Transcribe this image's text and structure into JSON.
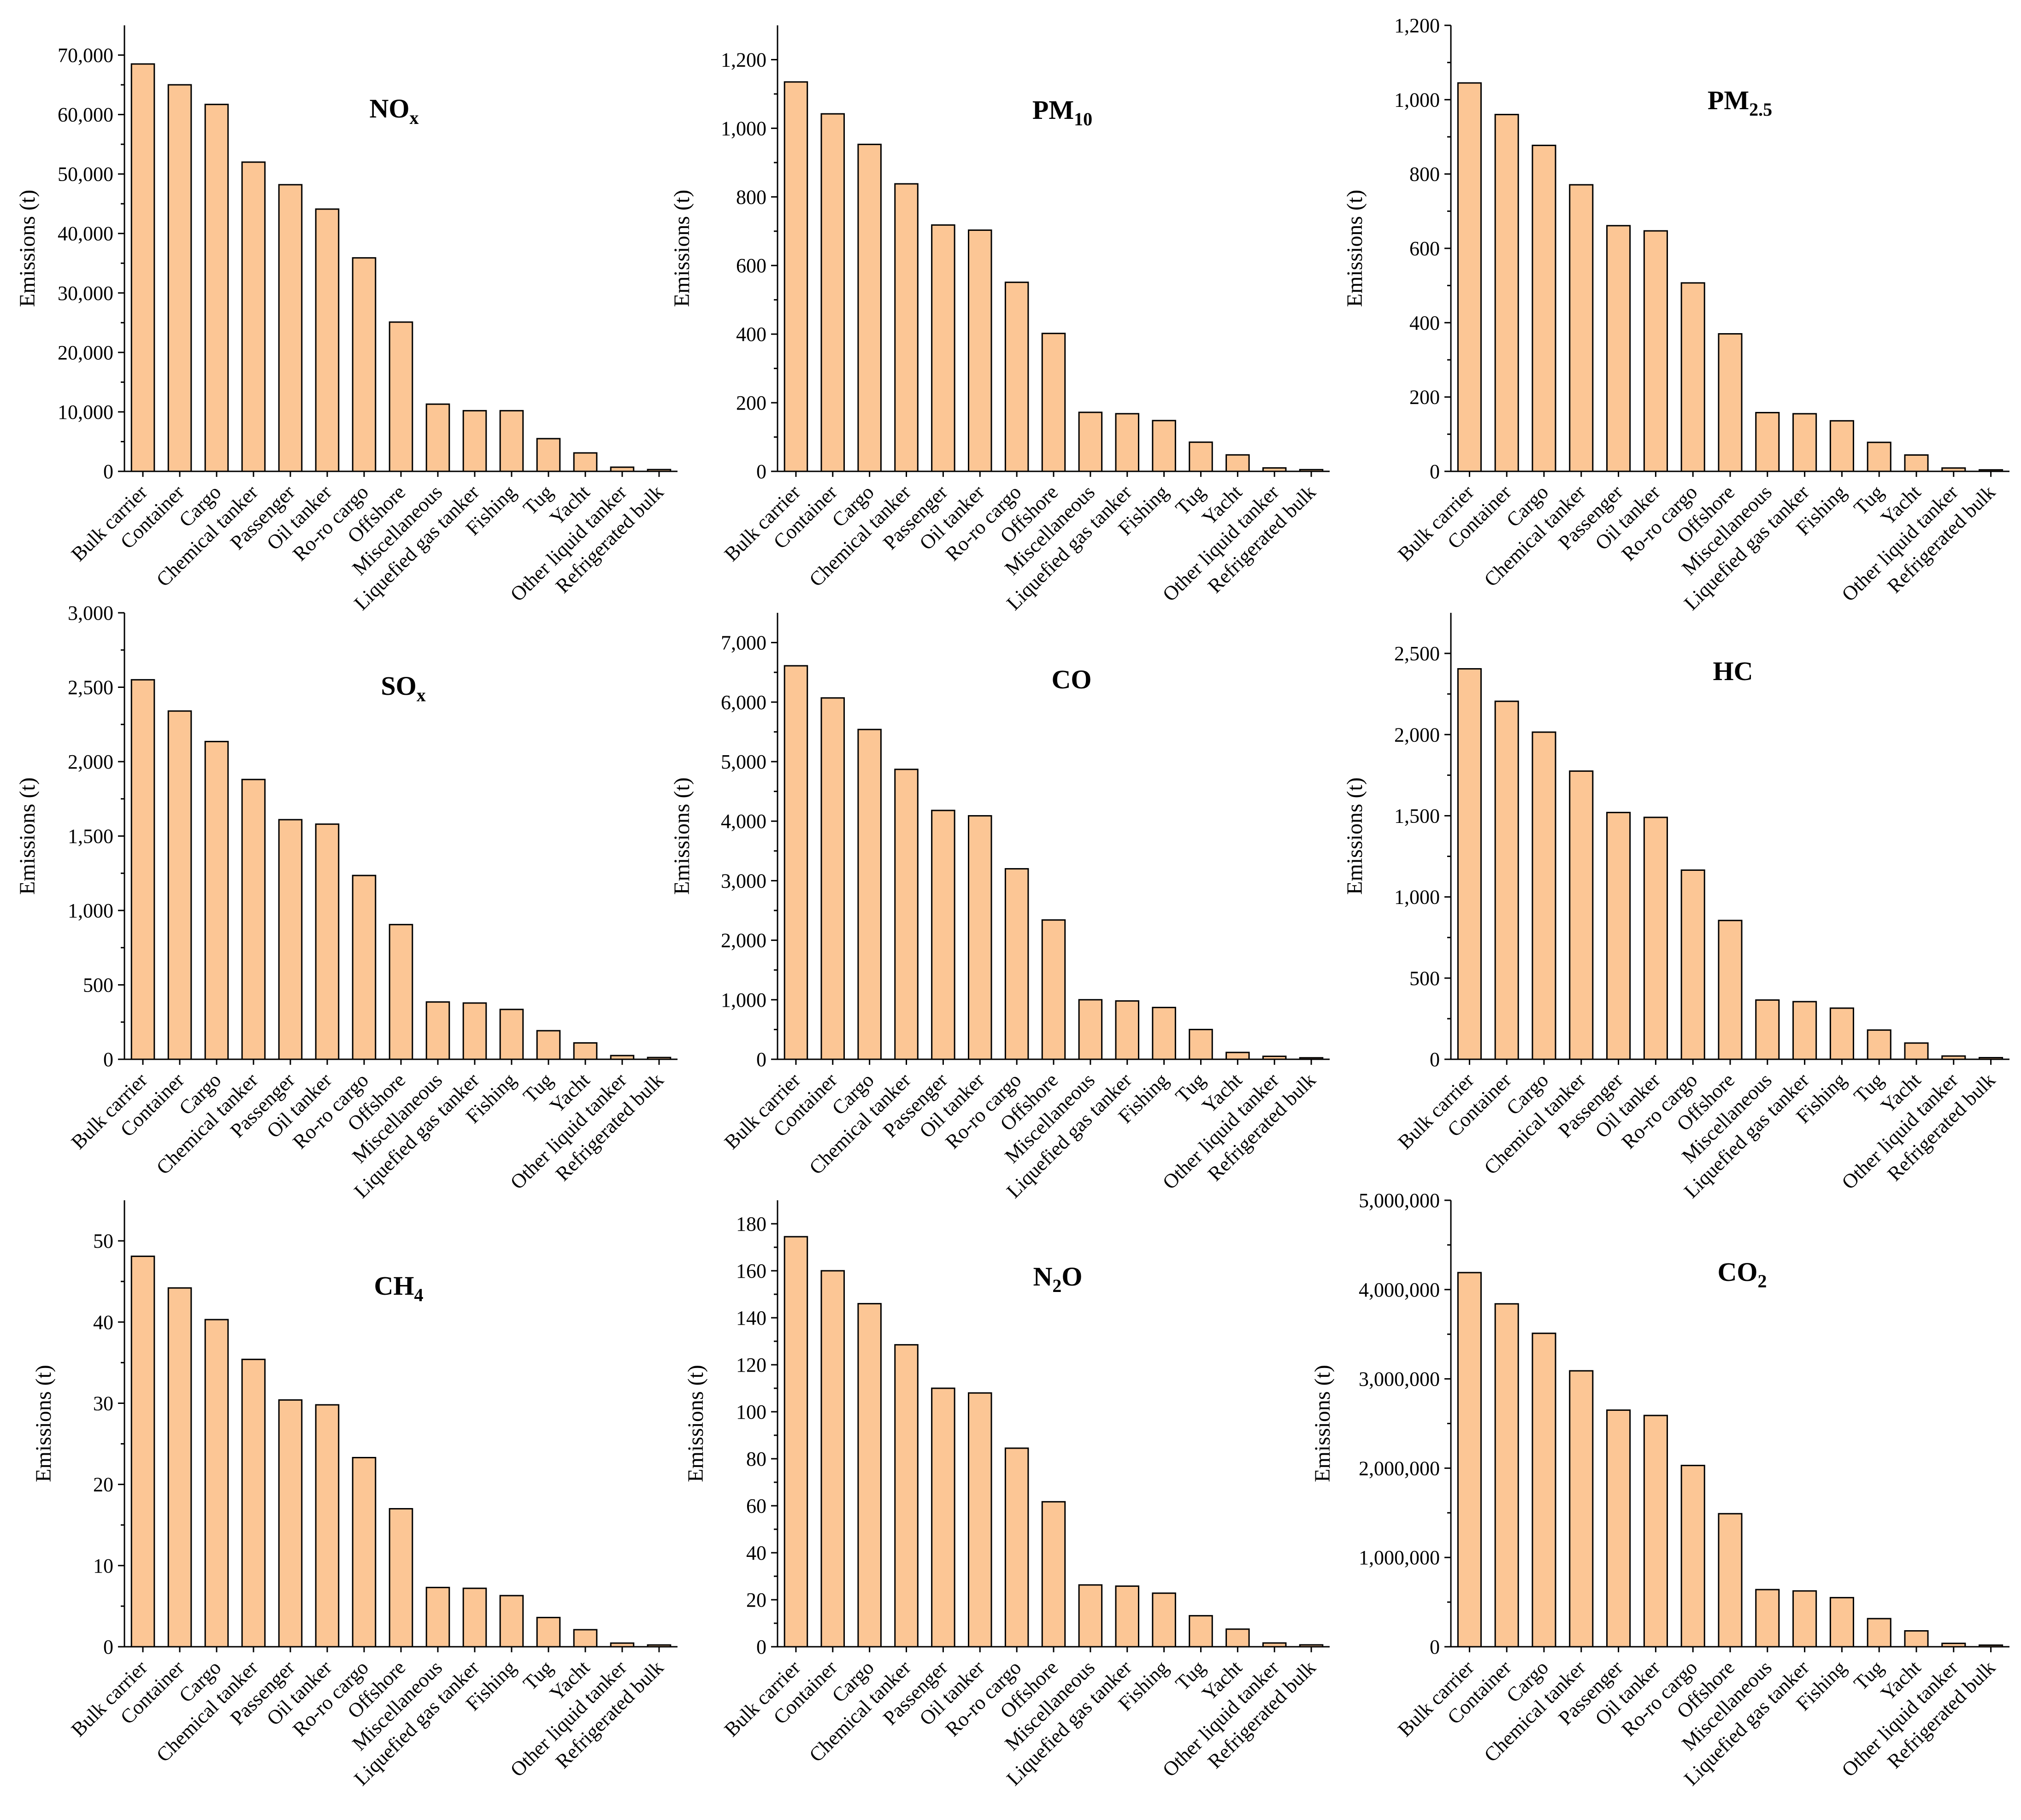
{
  "colors": {
    "bar_fill": "#fcc695",
    "bar_stroke": "#000000",
    "axis": "#000000"
  },
  "chart_data": [
    {
      "type": "bar",
      "title": "NO",
      "title_sub": "x",
      "xlabel": "",
      "ylabel": "Emissions (t)",
      "categories": [
        "Bulk carrier",
        "Container",
        "Cargo",
        "Chemical tanker",
        "Passenger",
        "Oil tanker",
        "Ro-ro cargo",
        "Offshore",
        "Miscellaneous",
        "Liquefied gas tanker",
        "Fishing",
        "Tug",
        "Yacht",
        "Other liquid tanker",
        "Refrigerated bulk"
      ],
      "values": [
        68500,
        65000,
        61700,
        52000,
        48200,
        44100,
        35900,
        25100,
        11300,
        10200,
        10200,
        5500,
        3100,
        700,
        300
      ],
      "ylim": [
        0,
        75000
      ],
      "yticks": [
        0,
        10000,
        20000,
        30000,
        40000,
        50000,
        60000,
        70000
      ],
      "ytick_labels": [
        "0",
        "10,000",
        "20,000",
        "30,000",
        "40,000",
        "50,000",
        "60,000",
        "70,000"
      ]
    },
    {
      "type": "bar",
      "title": "PM",
      "title_sub": "10",
      "xlabel": "",
      "ylabel": "Emissions (t)",
      "categories": [
        "Bulk carrier",
        "Container",
        "Cargo",
        "Chemical tanker",
        "Passenger",
        "Oil tanker",
        "Ro-ro cargo",
        "Offshore",
        "Miscellaneous",
        "Liquefied gas tanker",
        "Fishing",
        "Tug",
        "Yacht",
        "Other liquid tanker",
        "Refrigerated bulk"
      ],
      "values": [
        1135,
        1042,
        953,
        838,
        718,
        703,
        551,
        402,
        172,
        168,
        148,
        85,
        48,
        10,
        5
      ],
      "ylim": [
        0,
        1300
      ],
      "yticks": [
        0,
        200,
        400,
        600,
        800,
        1000,
        1200
      ],
      "ytick_labels": [
        "0",
        "200",
        "400",
        "600",
        "800",
        "1,000",
        "1,200"
      ]
    },
    {
      "type": "bar",
      "title": "PM",
      "title_sub": "2.5",
      "xlabel": "",
      "ylabel": "Emissions (t)",
      "categories": [
        "Bulk carrier",
        "Container",
        "Cargo",
        "Chemical tanker",
        "Passenger",
        "Oil tanker",
        "Ro-ro cargo",
        "Offshore",
        "Miscellaneous",
        "Liquefied gas tanker",
        "Fishing",
        "Tug",
        "Yacht",
        "Other liquid tanker",
        "Refrigerated bulk"
      ],
      "values": [
        1045,
        960,
        877,
        771,
        661,
        647,
        507,
        370,
        158,
        155,
        136,
        78,
        44,
        9,
        4
      ],
      "ylim": [
        0,
        1200
      ],
      "yticks": [
        0,
        200,
        400,
        600,
        800,
        1000,
        1200
      ],
      "ytick_labels": [
        "0",
        "200",
        "400",
        "600",
        "800",
        "1,000",
        "1,200"
      ]
    },
    {
      "type": "bar",
      "title": "SO",
      "title_sub": "x",
      "xlabel": "",
      "ylabel": "Emissions (t)",
      "categories": [
        "Bulk carrier",
        "Container",
        "Cargo",
        "Chemical tanker",
        "Passenger",
        "Oil tanker",
        "Ro-ro cargo",
        "Offshore",
        "Miscellaneous",
        "Liquefied gas tanker",
        "Fishing",
        "Tug",
        "Yacht",
        "Other liquid tanker",
        "Refrigerated bulk"
      ],
      "values": [
        2550,
        2340,
        2135,
        1880,
        1610,
        1580,
        1235,
        905,
        385,
        378,
        335,
        192,
        110,
        25,
        12
      ],
      "ylim": [
        0,
        3000
      ],
      "yticks": [
        0,
        500,
        1000,
        1500,
        2000,
        2500,
        3000
      ],
      "ytick_labels": [
        "0",
        "500",
        "1,000",
        "1,500",
        "2,000",
        "2,500",
        "3,000"
      ]
    },
    {
      "type": "bar",
      "title": "CO",
      "title_sub": "",
      "xlabel": "",
      "ylabel": "Emissions (t)",
      "categories": [
        "Bulk carrier",
        "Container",
        "Cargo",
        "Chemical tanker",
        "Passenger",
        "Oil tanker",
        "Ro-ro cargo",
        "Offshore",
        "Miscellaneous",
        "Liquefied gas tanker",
        "Fishing",
        "Tug",
        "Yacht",
        "Other liquid tanker",
        "Refrigerated bulk"
      ],
      "values": [
        6610,
        6070,
        5540,
        4870,
        4180,
        4090,
        3200,
        2340,
        1000,
        980,
        870,
        500,
        115,
        50,
        25
      ],
      "ylim": [
        0,
        7500
      ],
      "yticks": [
        0,
        1000,
        2000,
        3000,
        4000,
        5000,
        6000,
        7000
      ],
      "ytick_labels": [
        "0",
        "1,000",
        "2,000",
        "3,000",
        "4,000",
        "5,000",
        "6,000",
        "7,000"
      ]
    },
    {
      "type": "bar",
      "title": "HC",
      "title_sub": "",
      "xlabel": "",
      "ylabel": "Emissions (t)",
      "categories": [
        "Bulk carrier",
        "Container",
        "Cargo",
        "Chemical tanker",
        "Passenger",
        "Oil tanker",
        "Ro-ro cargo",
        "Offshore",
        "Miscellaneous",
        "Liquefied gas tanker",
        "Fishing",
        "Tug",
        "Yacht",
        "Other liquid tanker",
        "Refrigerated bulk"
      ],
      "values": [
        2405,
        2205,
        2015,
        1775,
        1520,
        1490,
        1165,
        855,
        365,
        355,
        315,
        180,
        100,
        20,
        10
      ],
      "ylim": [
        0,
        2750
      ],
      "yticks": [
        0,
        500,
        1000,
        1500,
        2000,
        2500
      ],
      "ytick_labels": [
        "0",
        "500",
        "1,000",
        "1,500",
        "2,000",
        "2,500"
      ]
    },
    {
      "type": "bar",
      "title": "CH",
      "title_sub": "4",
      "xlabel": "",
      "ylabel": "Emissions (t)",
      "categories": [
        "Bulk carrier",
        "Container",
        "Cargo",
        "Chemical tanker",
        "Passenger",
        "Oil tanker",
        "Ro-ro cargo",
        "Offshore",
        "Miscellaneous",
        "Liquefied gas tanker",
        "Fishing",
        "Tug",
        "Yacht",
        "Other liquid tanker",
        "Refrigerated bulk"
      ],
      "values": [
        48.1,
        44.2,
        40.3,
        35.4,
        30.4,
        29.8,
        23.3,
        17.0,
        7.3,
        7.2,
        6.3,
        3.6,
        2.1,
        0.45,
        0.22
      ],
      "ylim": [
        0,
        55
      ],
      "yticks": [
        0,
        10,
        20,
        30,
        40,
        50
      ],
      "ytick_labels": [
        "0",
        "10",
        "20",
        "30",
        "40",
        "50"
      ]
    },
    {
      "type": "bar",
      "title": "N",
      "title_sub": "2",
      "title_after": "O",
      "xlabel": "",
      "ylabel": "Emissions (t)",
      "categories": [
        "Bulk carrier",
        "Container",
        "Cargo",
        "Chemical tanker",
        "Passenger",
        "Oil tanker",
        "Ro-ro cargo",
        "Offshore",
        "Miscellaneous",
        "Liquefied gas tanker",
        "Fishing",
        "Tug",
        "Yacht",
        "Other liquid tanker",
        "Refrigerated bulk"
      ],
      "values": [
        174.5,
        160.0,
        146.0,
        128.5,
        110.0,
        108.0,
        84.5,
        61.7,
        26.3,
        25.8,
        22.8,
        13.2,
        7.5,
        1.6,
        0.8
      ],
      "ylim": [
        0,
        190
      ],
      "yticks": [
        0,
        20,
        40,
        60,
        80,
        100,
        120,
        140,
        160,
        180
      ],
      "ytick_labels": [
        "0",
        "20",
        "40",
        "60",
        "80",
        "100",
        "120",
        "140",
        "160",
        "180"
      ]
    },
    {
      "type": "bar",
      "title": "CO",
      "title_sub": "2",
      "xlabel": "",
      "ylabel": "Emissions (t)",
      "categories": [
        "Bulk carrier",
        "Container",
        "Cargo",
        "Chemical tanker",
        "Passenger",
        "Oil tanker",
        "Ro-ro cargo",
        "Offshore",
        "Miscellaneous",
        "Liquefied gas tanker",
        "Fishing",
        "Tug",
        "Yacht",
        "Other liquid tanker",
        "Refrigerated bulk"
      ],
      "values": [
        4190000,
        3840000,
        3510000,
        3090000,
        2650000,
        2590000,
        2030000,
        1490000,
        640000,
        625000,
        550000,
        315000,
        178000,
        38000,
        18000
      ],
      "ylim": [
        0,
        5000000
      ],
      "yticks": [
        0,
        1000000,
        2000000,
        3000000,
        4000000,
        5000000
      ],
      "ytick_labels": [
        "0",
        "1,000,000",
        "2,000,000",
        "3,000,000",
        "4,000,000",
        "5,000,000"
      ]
    }
  ]
}
